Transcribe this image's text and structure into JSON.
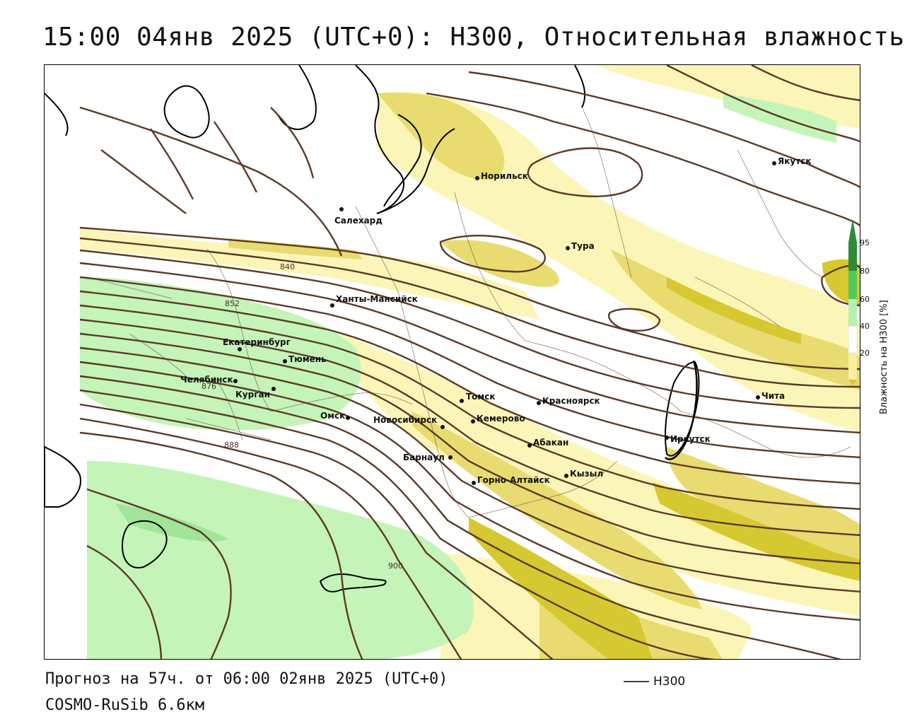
{
  "title": "15:00 04янв 2025 (UTC+0): H300, Относительная влажность",
  "footer": {
    "forecast": "Прогноз на 57ч. от 06:00 02янв 2025 (UTC+0)",
    "model": "COSMO-RuSib 6.6км"
  },
  "legend": {
    "title": "Влажность на H300 [%]",
    "ticks": [
      "95",
      "80",
      "60",
      "40",
      "20"
    ],
    "colors": [
      "#2e8b3a",
      "#56c85a",
      "#b8f0b0",
      "#ffffff",
      "#f5f0a0",
      "#d6c830"
    ]
  },
  "series_legend": {
    "label": "H300",
    "color": "#5a3a28"
  },
  "colors": {
    "contour": "#5a3a28",
    "dry_yellow": "#fbf6b8",
    "mid_yellow": "#e8dc70",
    "strong_yellow": "#d6c830",
    "moist_green": "#c4f4b8",
    "dark_green": "#7ed67a",
    "coast": "#000000",
    "border": "#6a4a3a"
  },
  "contour_labels": [
    "840",
    "852",
    "876",
    "888",
    "900"
  ],
  "cities": [
    {
      "name": "Якутск"
    },
    {
      "name": "Норильск"
    },
    {
      "name": "Салехард"
    },
    {
      "name": "Тура"
    },
    {
      "name": "Ханты-Мансийск"
    },
    {
      "name": "Екатеринбург"
    },
    {
      "name": "Тюмень"
    },
    {
      "name": "Челябинск"
    },
    {
      "name": "Курган"
    },
    {
      "name": "Омск"
    },
    {
      "name": "Новосибирск"
    },
    {
      "name": "Томск"
    },
    {
      "name": "Кемерово"
    },
    {
      "name": "Красноярск"
    },
    {
      "name": "Абакан"
    },
    {
      "name": "Барнаул"
    },
    {
      "name": "Горно-Алтайск"
    },
    {
      "name": "Кызыл"
    },
    {
      "name": "Иркутск"
    },
    {
      "name": "Чита"
    }
  ]
}
